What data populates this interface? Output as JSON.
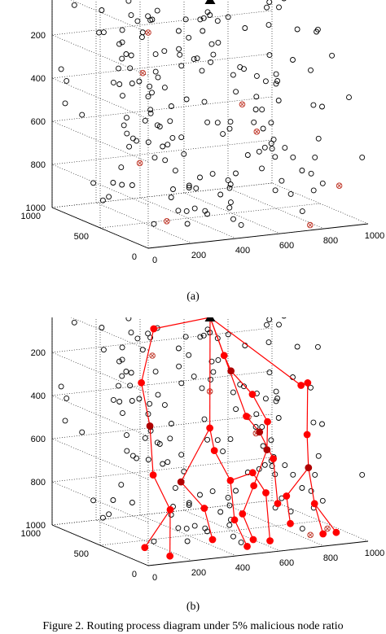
{
  "figure": {
    "caption": "Figure 2. Routing process diagram under 5% malicious node ratio",
    "colors": {
      "node": "#000000",
      "malicious": "#c0392b",
      "route": "#ff0000",
      "route_dark": "#b00000",
      "sink": "#000000"
    }
  },
  "chart_data": [
    {
      "panel_label": "(a)",
      "type": "scatter",
      "xlim": [
        0,
        1000
      ],
      "ylim": [
        0,
        1000
      ],
      "zlim": [
        0,
        1000
      ],
      "x_ticks": [
        "0",
        "200",
        "400",
        "600",
        "800",
        "1000"
      ],
      "y_ticks": [
        "0",
        "500",
        "1000"
      ],
      "z_ticks": [
        "0",
        "200",
        "400",
        "600",
        "800",
        "1000"
      ],
      "grid": true,
      "sink": {
        "x": 500,
        "y": 500,
        "z": 0
      },
      "malicious_nodes": [
        [
          0,
          0,
          0
        ],
        [
          150,
          400,
          280
        ],
        [
          480,
          120,
          410
        ],
        [
          520,
          60,
          530
        ],
        [
          180,
          500,
          720
        ],
        [
          150,
          150,
          920
        ],
        [
          780,
          100,
          1000
        ],
        [
          1000,
          300,
          880
        ]
      ],
      "nodes": []
    },
    {
      "panel_label": "(b)",
      "type": "scatter",
      "xlim": [
        0,
        1000
      ],
      "ylim": [
        0,
        1000
      ],
      "zlim": [
        0,
        1000
      ],
      "x_ticks": [
        "0",
        "200",
        "400",
        "600",
        "800",
        "1000"
      ],
      "y_ticks": [
        "0",
        "500",
        "1000"
      ],
      "z_ticks": [
        "0",
        "200",
        "400",
        "600",
        "800",
        "1000"
      ],
      "grid": true,
      "sink": {
        "x": 500,
        "y": 500,
        "z": 0
      },
      "malicious_nodes": [
        [
          150,
          300,
          100
        ],
        [
          420,
          320,
          300
        ],
        [
          560,
          240,
          420
        ],
        [
          560,
          160,
          480
        ],
        [
          850,
          80,
          940
        ],
        [
          790,
          120,
          970
        ]
      ],
      "route_nodes": [
        [
          500,
          500,
          0
        ],
        [
          200,
          400,
          0
        ],
        [
          100,
          300,
          220
        ],
        [
          130,
          280,
          420
        ],
        [
          110,
          200,
          630
        ],
        [
          170,
          160,
          790
        ],
        [
          50,
          150,
          950
        ],
        [
          160,
          140,
          1000
        ],
        [
          420,
          320,
          470
        ],
        [
          280,
          300,
          700
        ],
        [
          360,
          240,
          820
        ],
        [
          380,
          200,
          960
        ],
        [
          410,
          250,
          560
        ],
        [
          470,
          220,
          700
        ],
        [
          480,
          200,
          880
        ],
        [
          520,
          160,
          1000
        ],
        [
          580,
          240,
          680
        ],
        [
          640,
          240,
          780
        ],
        [
          650,
          220,
          1000
        ],
        [
          560,
          260,
          420
        ],
        [
          620,
          260,
          500
        ],
        [
          700,
          300,
          640
        ],
        [
          720,
          300,
          850
        ],
        [
          800,
          240,
          300
        ],
        [
          900,
          400,
          330
        ],
        [
          880,
          360,
          560
        ],
        [
          860,
          300,
          700
        ],
        [
          870,
          260,
          860
        ],
        [
          900,
          240,
          1000
        ],
        [
          760,
          300,
          820
        ],
        [
          760,
          260,
          940
        ],
        [
          960,
          240,
          1000
        ],
        [
          520,
          400,
          160
        ],
        [
          560,
          420,
          240
        ],
        [
          640,
          380,
          350
        ],
        [
          700,
          360,
          480
        ],
        [
          680,
          320,
          600
        ],
        [
          620,
          320,
          760
        ],
        [
          560,
          300,
          880
        ],
        [
          600,
          280,
          1000
        ]
      ],
      "route_edges": [
        [
          0,
          1
        ],
        [
          1,
          2
        ],
        [
          2,
          3
        ],
        [
          3,
          4
        ],
        [
          4,
          5
        ],
        [
          5,
          6
        ],
        [
          5,
          7
        ],
        [
          0,
          8
        ],
        [
          8,
          9
        ],
        [
          9,
          10
        ],
        [
          10,
          11
        ],
        [
          8,
          12
        ],
        [
          12,
          13
        ],
        [
          13,
          14
        ],
        [
          14,
          15
        ],
        [
          13,
          16
        ],
        [
          16,
          17
        ],
        [
          17,
          18
        ],
        [
          0,
          19
        ],
        [
          19,
          20
        ],
        [
          20,
          21
        ],
        [
          21,
          22
        ],
        [
          0,
          23
        ],
        [
          23,
          24
        ],
        [
          24,
          25
        ],
        [
          25,
          26
        ],
        [
          26,
          27
        ],
        [
          27,
          28
        ],
        [
          26,
          29
        ],
        [
          29,
          30
        ],
        [
          27,
          31
        ],
        [
          0,
          32
        ],
        [
          32,
          33
        ],
        [
          33,
          34
        ],
        [
          34,
          35
        ],
        [
          35,
          36
        ],
        [
          36,
          37
        ],
        [
          37,
          38
        ],
        [
          38,
          39
        ]
      ],
      "dark_route_nodes": [
        3,
        9,
        20,
        26,
        33,
        36
      ]
    }
  ]
}
